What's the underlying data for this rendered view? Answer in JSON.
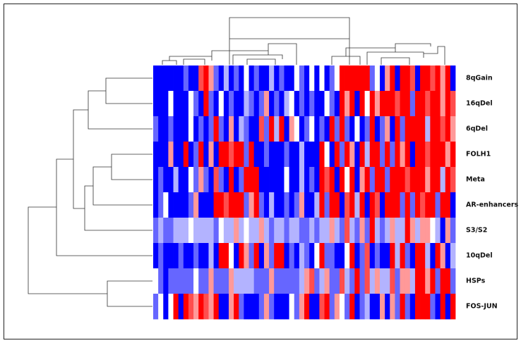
{
  "chart_data": {
    "type": "heatmap",
    "rows": [
      "8qGain",
      "16qDel",
      "6qDel",
      "FOLH1",
      "Meta",
      "AR-enhancers",
      "S3/S2",
      "10qDel",
      "HSPs",
      "FOS-JUN"
    ],
    "low_color": "#0000ff",
    "mid_color": "#ffffff",
    "high_color": "#ff0000",
    "values": [
      [
        -1,
        -1,
        -1,
        -1,
        -1,
        -1,
        -0.6,
        -1,
        -1,
        0.7,
        1,
        0.4,
        -0.6,
        -1,
        -0.3,
        -1,
        -0.6,
        -1,
        0,
        -1,
        -0.6,
        -1,
        -1,
        -0.3,
        -1,
        -0.6,
        -1,
        -1,
        0,
        -0.6,
        -1,
        0,
        -1,
        0,
        -1,
        -0.6,
        0,
        1,
        1,
        1,
        1,
        1,
        1,
        -0.6,
        0,
        -1,
        0.4,
        1,
        -1,
        1,
        1,
        0.7,
        -1,
        1,
        1,
        0.7,
        1,
        0.4,
        1,
        -1
      ],
      [
        -1,
        -1,
        -1,
        0,
        -1,
        -1,
        -1,
        0,
        -0.6,
        -1,
        1,
        -0.6,
        -1,
        0,
        -1,
        -0.6,
        -1,
        -1,
        -0.3,
        -0.6,
        -1,
        -0.6,
        0.4,
        -1,
        -0.6,
        -1,
        -0.3,
        0,
        -1,
        -0.6,
        -1,
        -0.6,
        -1,
        -1,
        0,
        -0.6,
        -1,
        1,
        0.4,
        1,
        -1,
        1,
        0,
        1,
        0.4,
        1,
        1,
        1,
        0.7,
        1,
        1,
        -0.6,
        1,
        1,
        0.7,
        1,
        1,
        0.4,
        1,
        0.7
      ],
      [
        -0.6,
        -1,
        -1,
        -0.6,
        -1,
        -1,
        -1,
        0,
        -1,
        -0.6,
        -1,
        -0.6,
        1,
        -0.6,
        -1,
        0.4,
        -1,
        -0.3,
        -0.6,
        -1,
        -1,
        0.7,
        -0.6,
        1,
        -0.3,
        1,
        -1,
        0.4,
        0,
        -1,
        -0.6,
        0,
        -1,
        -0.6,
        -1,
        1,
        -0.6,
        1,
        -0.6,
        -1,
        0,
        -1,
        -0.6,
        1,
        -1,
        -0.6,
        0.4,
        -1,
        1,
        -0.6,
        1,
        1,
        1,
        1,
        -0.3,
        1,
        1,
        0.7,
        1,
        0.4
      ],
      [
        -1,
        -1,
        -1,
        0.4,
        -1,
        -1,
        1,
        -1,
        -0.6,
        1,
        -1,
        0.4,
        -1,
        1,
        1,
        0.7,
        1,
        1,
        -0.6,
        1,
        -1,
        -1,
        -0.6,
        -1,
        -1,
        -1,
        -0.6,
        -1,
        -1,
        -0.3,
        -1,
        -1,
        -1,
        1,
        0,
        -1,
        1,
        -0.6,
        1,
        0.4,
        -1,
        1,
        -0.3,
        1,
        1,
        -0.6,
        1,
        -0.6,
        1,
        0.4,
        1,
        -1,
        1,
        1,
        0.7,
        1,
        1,
        1,
        0.4,
        1
      ],
      [
        -1,
        -0.6,
        -1,
        -1,
        -0.3,
        -1,
        -1,
        0,
        -0.6,
        0.4,
        -0.6,
        -1,
        0.7,
        -0.6,
        -1,
        1,
        -1,
        -0.6,
        1,
        1,
        1,
        -1,
        -1,
        -1,
        -1,
        -1,
        0,
        -1,
        -1,
        -0.3,
        -1,
        -0.6,
        -1,
        1,
        0.7,
        1,
        -1,
        1,
        0,
        1,
        -1,
        0.4,
        1,
        -0.6,
        1,
        1,
        -0.6,
        1,
        1,
        1,
        0.7,
        1,
        1,
        1,
        0.4,
        1,
        1,
        -0.3,
        1,
        0.7
      ],
      [
        -1,
        -0.6,
        0,
        -1,
        -1,
        -1,
        -1,
        -0.6,
        0.4,
        -1,
        -1,
        -1,
        1,
        1,
        0.7,
        1,
        1,
        1,
        -0.6,
        0.4,
        1,
        -0.6,
        -1,
        -0.3,
        -1,
        -1,
        -0.6,
        -1,
        -0.6,
        0.4,
        -1,
        -1,
        -0.3,
        1,
        -0.6,
        1,
        1,
        -1,
        0.7,
        1,
        -0.3,
        1,
        -1,
        1,
        0.7,
        -1,
        1,
        1,
        1,
        -0.6,
        1,
        -0.6,
        1,
        0.7,
        1,
        1,
        -0.6,
        1,
        1,
        -1
      ],
      [
        -0.6,
        -0.3,
        -0.6,
        -0.6,
        -0.3,
        -0.3,
        -0.3,
        0,
        -0.3,
        -0.3,
        -0.3,
        -0.3,
        -0.6,
        0,
        -0.3,
        -0.3,
        0.4,
        -0.3,
        0,
        -0.3,
        -0.3,
        0.4,
        -0.3,
        -0.6,
        -0.3,
        -0.3,
        -0.6,
        -0.3,
        -0.3,
        -0.6,
        -0.6,
        -0.3,
        -0.6,
        -0.3,
        -0.3,
        0.4,
        -0.3,
        -0.6,
        0.7,
        -0.3,
        -0.6,
        0.4,
        -0.6,
        1,
        -0.3,
        -0.6,
        -0.3,
        0.4,
        -0.3,
        -0.3,
        1,
        0.4,
        -0.3,
        0.4,
        0.4,
        0,
        -0.3,
        -1,
        0.4,
        -0.6
      ],
      [
        -1,
        -0.6,
        -1,
        -1,
        -1,
        -0.6,
        -1,
        -1,
        -0.6,
        -1,
        -1,
        -0.3,
        -1,
        1,
        1,
        0,
        -1,
        1,
        0.4,
        -0.6,
        1,
        -1,
        0.4,
        -0.6,
        1,
        1,
        -1,
        -0.6,
        -1,
        -0.3,
        -0.6,
        -1,
        0,
        1,
        -0.6,
        -0.6,
        -1,
        -1,
        0,
        1,
        -1,
        -0.6,
        0.7,
        -1,
        -0.6,
        -1,
        -1,
        1,
        -0.3,
        1,
        -0.6,
        -1,
        1,
        1,
        -0.3,
        -1,
        1,
        0.4,
        -1,
        -0.3
      ],
      [
        0,
        -0.6,
        -1,
        -0.6,
        -0.6,
        -0.6,
        -0.6,
        -0.6,
        0,
        -0.6,
        -0.6,
        0.4,
        -0.6,
        -0.6,
        -0.6,
        0.4,
        -0.3,
        -0.3,
        -0.3,
        -0.3,
        -0.6,
        -0.6,
        -0.6,
        0.4,
        -0.6,
        -0.6,
        -0.6,
        -0.6,
        -0.6,
        -0.3,
        0.4,
        0.7,
        -0.6,
        -0.3,
        0.4,
        -0.6,
        -0.6,
        0.7,
        -0.3,
        -0.6,
        1,
        -0.6,
        0.7,
        -0.3,
        0.4,
        -0.3,
        -0.3,
        0.7,
        -0.6,
        0.4,
        0.4,
        -0.3,
        1,
        1,
        0.4,
        1,
        -0.6,
        1,
        1,
        -0.6
      ],
      [
        -0.6,
        0,
        -1,
        0,
        1,
        -1,
        1,
        0.7,
        0.4,
        1,
        0.7,
        0.4,
        1,
        -1,
        -1,
        0.4,
        1,
        -0.6,
        -1,
        -1,
        -1,
        -0.6,
        0.4,
        -0.6,
        -1,
        -1,
        -1,
        0,
        -0.6,
        0.4,
        1,
        -1,
        -1,
        0.7,
        1,
        -0.6,
        0.4,
        0,
        -0.6,
        1,
        -1,
        -0.6,
        -0.3,
        -1,
        -1,
        0.4,
        -1,
        0.4,
        -0.6,
        1,
        -0.6,
        -1,
        1,
        1,
        1,
        -0.6,
        -1,
        1,
        -1,
        1
      ]
    ]
  }
}
